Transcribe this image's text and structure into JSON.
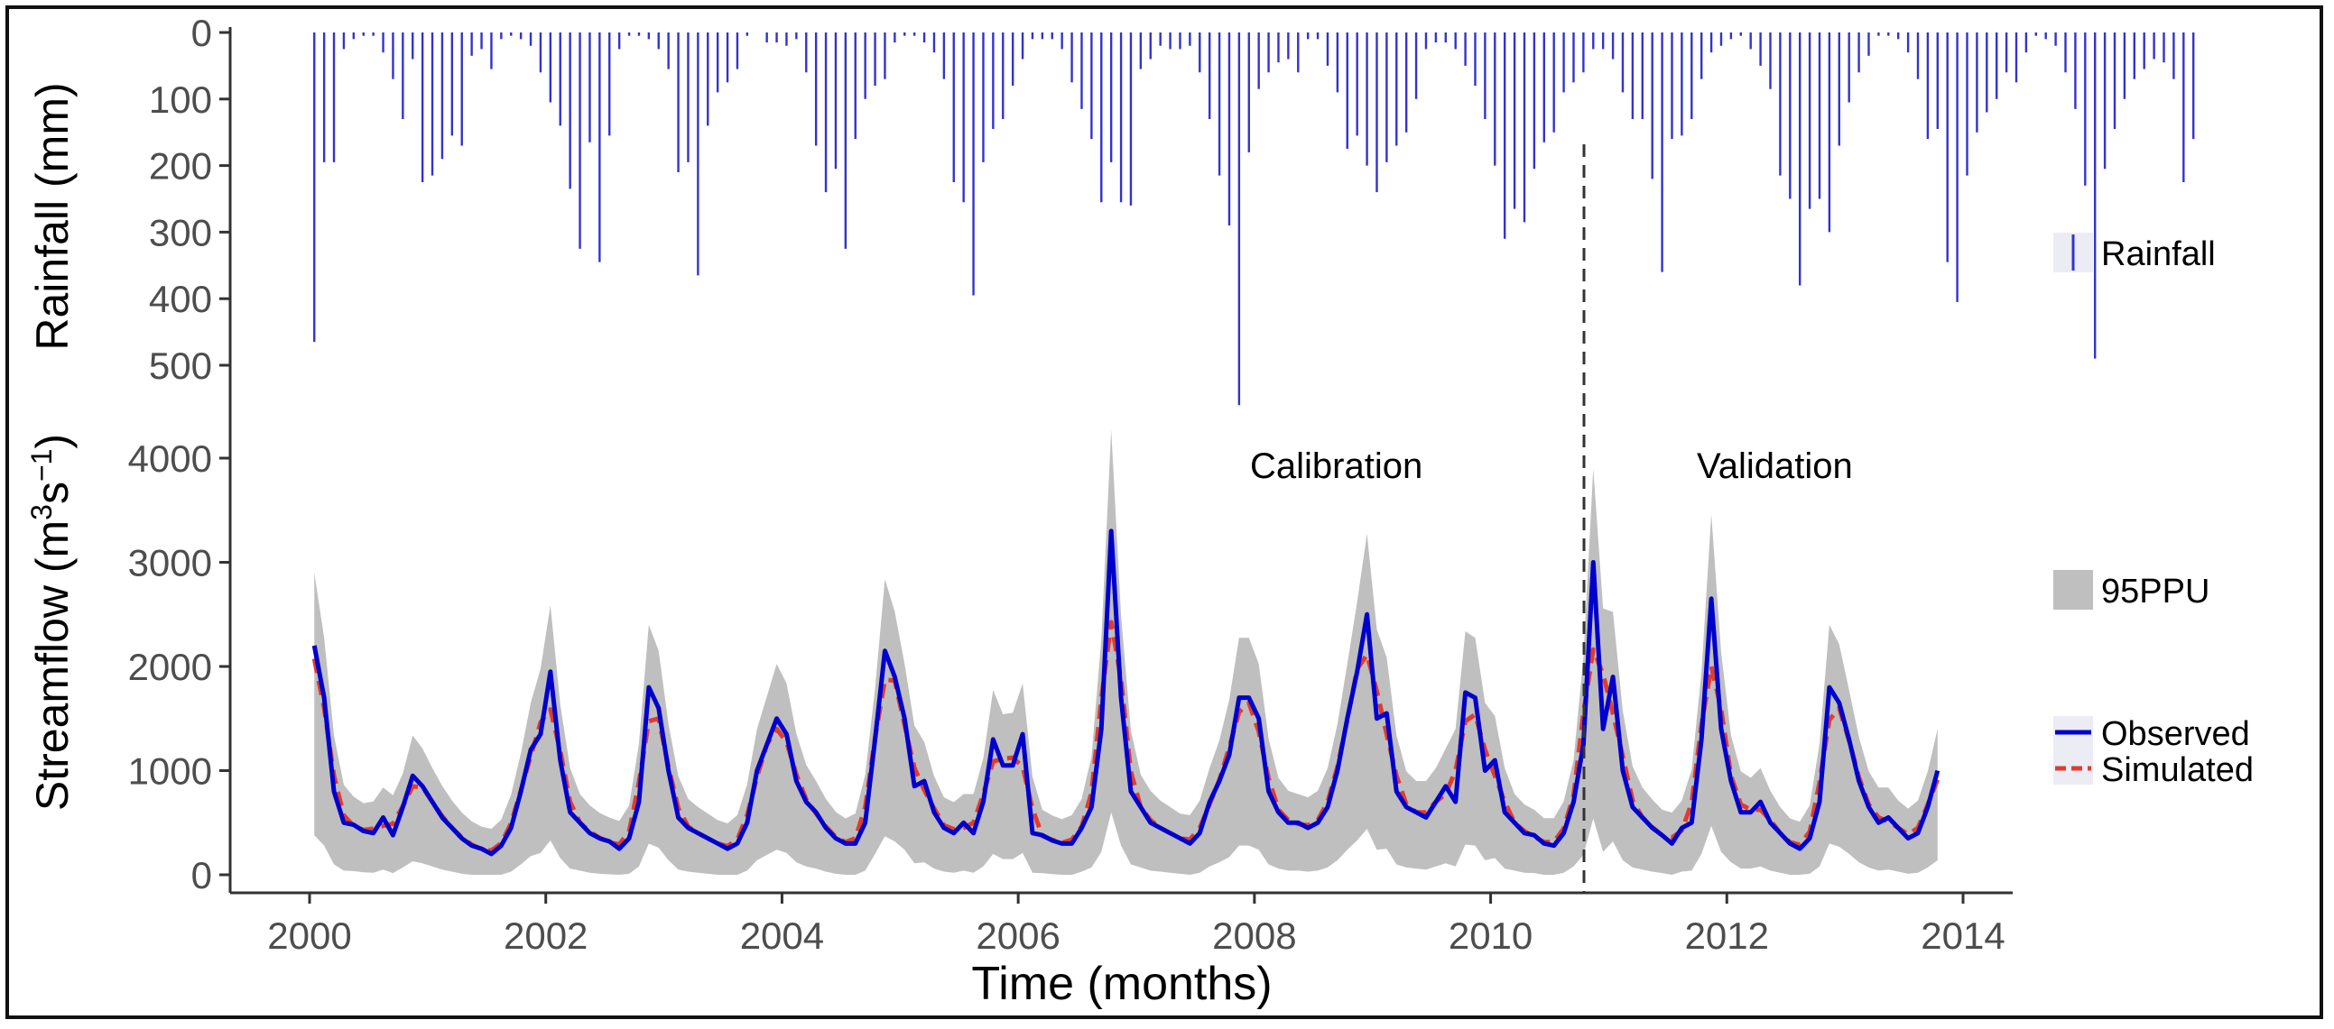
{
  "chart_data": {
    "type": "line",
    "xlabel": "Time (months)",
    "x_ticks": [
      "2000",
      "2002",
      "2004",
      "2006",
      "2008",
      "2010",
      "2012",
      "2014"
    ],
    "xlim": [
      2000,
      2014
    ],
    "rainfall": {
      "ylabel": "Rainfall (mm)",
      "y_ticks": [
        "0",
        "100",
        "200",
        "300",
        "400",
        "500"
      ],
      "ylim": [
        0,
        550
      ],
      "series_name": "Rainfall",
      "start_year": 2000.04,
      "step_years": 0.0833,
      "values": [
        465,
        195,
        195,
        25,
        10,
        5,
        5,
        30,
        70,
        130,
        40,
        225,
        215,
        190,
        155,
        170,
        35,
        25,
        55,
        10,
        5,
        10,
        20,
        60,
        105,
        140,
        235,
        325,
        165,
        345,
        155,
        25,
        5,
        5,
        10,
        25,
        55,
        210,
        195,
        365,
        140,
        90,
        75,
        55,
        5,
        0,
        15,
        15,
        20,
        10,
        60,
        170,
        240,
        205,
        325,
        160,
        100,
        80,
        70,
        15,
        5,
        5,
        15,
        30,
        70,
        225,
        255,
        395,
        195,
        145,
        130,
        80,
        40,
        10,
        10,
        10,
        25,
        75,
        115,
        160,
        255,
        195,
        255,
        260,
        55,
        40,
        20,
        25,
        25,
        20,
        60,
        130,
        215,
        290,
        560,
        180,
        85,
        60,
        45,
        40,
        60,
        10,
        10,
        50,
        90,
        175,
        155,
        200,
        240,
        195,
        170,
        150,
        100,
        25,
        15,
        15,
        25,
        50,
        80,
        130,
        200,
        310,
        265,
        285,
        205,
        165,
        150,
        90,
        75,
        60,
        25,
        25,
        40,
        90,
        130,
        130,
        220,
        360,
        160,
        155,
        130,
        70,
        30,
        20,
        10,
        5,
        25,
        50,
        85,
        215,
        250,
        380,
        265,
        250,
        300,
        170,
        105,
        60,
        35,
        5,
        5,
        10,
        30,
        70,
        160,
        145,
        345,
        405,
        215,
        150,
        120,
        100,
        60,
        75,
        30,
        5,
        10,
        20,
        60,
        115,
        230,
        490,
        205,
        145,
        100,
        70,
        55,
        40,
        45,
        70,
        225,
        160
      ]
    },
    "streamflow": {
      "ylabel": "Streamflow (m3s−1)",
      "ylabel_base": "Streamflow (m",
      "ylabel_sup1": "3",
      "ylabel_mid": "s",
      "ylabel_sup2": "−1",
      "ylabel_end": ")",
      "y_ticks": [
        "0",
        "1000",
        "2000",
        "3000",
        "4000"
      ],
      "ylim": [
        -100,
        4300
      ],
      "start_year": 2000.04,
      "step_years": 0.0833,
      "observed": [
        2200,
        1700,
        800,
        500,
        480,
        420,
        400,
        550,
        380,
        650,
        950,
        850,
        700,
        550,
        450,
        350,
        280,
        250,
        200,
        280,
        450,
        800,
        1200,
        1350,
        1950,
        1100,
        600,
        500,
        400,
        350,
        320,
        250,
        350,
        700,
        1800,
        1600,
        1000,
        550,
        450,
        400,
        350,
        300,
        250,
        300,
        500,
        1000,
        1250,
        1500,
        1350,
        900,
        700,
        600,
        450,
        350,
        300,
        300,
        500,
        1300,
        2150,
        1900,
        1500,
        850,
        900,
        600,
        450,
        400,
        500,
        400,
        700,
        1300,
        1050,
        1050,
        1350,
        400,
        380,
        330,
        300,
        300,
        450,
        650,
        1400,
        3300,
        1700,
        800,
        650,
        500,
        450,
        400,
        350,
        300,
        400,
        700,
        900,
        1150,
        1700,
        1700,
        1500,
        800,
        600,
        500,
        500,
        450,
        500,
        650,
        1000,
        1500,
        1950,
        2500,
        1500,
        1550,
        800,
        650,
        600,
        550,
        700,
        850,
        700,
        1750,
        1700,
        1000,
        1100,
        600,
        500,
        400,
        380,
        300,
        280,
        400,
        700,
        1250,
        3000,
        1400,
        1900,
        1000,
        650,
        550,
        450,
        380,
        300,
        450,
        500,
        1300,
        2650,
        1400,
        900,
        600,
        600,
        700,
        500,
        400,
        300,
        250,
        350,
        700,
        1800,
        1650,
        1300,
        900,
        650,
        500,
        550,
        450,
        350,
        400,
        650,
        1000
      ]
    },
    "legend": {
      "rainfall": "Rainfall",
      "ppu": "95PPU",
      "observed": "Observed",
      "simulated": "Simulated"
    },
    "annotations": {
      "calibration": "Calibration",
      "validation": "Validation",
      "split_year": 2011.0
    },
    "colors": {
      "rainfall": "#3333cc",
      "observed": "#0000cc",
      "simulated": "#e03c2e",
      "ppu": "#bfbfbf",
      "axis": "#333333"
    }
  }
}
